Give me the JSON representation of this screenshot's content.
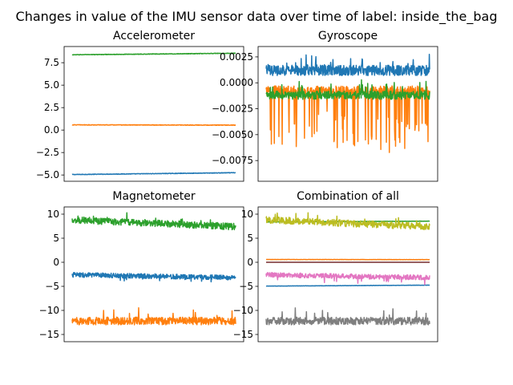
{
  "figure": {
    "suptitle": "Changes in value of the IMU sensor data over time of label: inside_the_bag"
  },
  "colors": {
    "c0": "#1f77b4",
    "c1": "#ff7f0e",
    "c2": "#2ca02c",
    "c3": "#d62728",
    "c4": "#9467bd",
    "c5": "#8c564b",
    "c6": "#e377c2",
    "c7": "#7f7f7f",
    "c8": "#bcbd22"
  },
  "chart_data": [
    {
      "type": "line",
      "title": "Accelerometer",
      "xlabel": "",
      "ylabel": "",
      "x_ticks_visible": false,
      "ylim": [
        -5.7,
        9.3
      ],
      "yticks": [
        -5.0,
        -2.5,
        0.0,
        2.5,
        5.0,
        7.5
      ],
      "ytick_labels": [
        "−5.0",
        "−2.5",
        "0.0",
        "2.5",
        "5.0",
        "7.5"
      ],
      "series": [
        {
          "color": "#1f77b4",
          "start": -4.95,
          "end": -4.75,
          "noise": 0.03,
          "spike_prob": 0,
          "spike": 0
        },
        {
          "color": "#ff7f0e",
          "start": 0.58,
          "end": 0.55,
          "noise": 0.03,
          "spike_prob": 0,
          "spike": 0
        },
        {
          "color": "#2ca02c",
          "start": 8.38,
          "end": 8.55,
          "noise": 0.03,
          "spike_prob": 0,
          "spike": 0
        }
      ]
    },
    {
      "type": "line",
      "title": "Gyroscope",
      "xlabel": "",
      "ylabel": "",
      "x_ticks_visible": false,
      "ylim": [
        -0.0095,
        0.0035
      ],
      "yticks": [
        -0.0075,
        -0.005,
        -0.0025,
        0.0,
        0.0025
      ],
      "ytick_labels": [
        "−0.0075",
        "−0.0050",
        "−0.0025",
        "0.0000",
        "0.0025"
      ],
      "series": [
        {
          "color": "#1f77b4",
          "start": 0.0012,
          "end": 0.0012,
          "noise": 0.0005,
          "spike_prob": 0.05,
          "spike": 0.0012
        },
        {
          "color": "#ff7f0e",
          "start": -0.0008,
          "end": -0.0008,
          "noise": 0.0005,
          "spike_prob": 0.12,
          "spike": -0.0055
        },
        {
          "color": "#2ca02c",
          "start": -0.0012,
          "end": -0.0012,
          "noise": 0.0004,
          "spike_prob": 0.04,
          "spike": 0.0012
        }
      ]
    },
    {
      "type": "line",
      "title": "Magnetometer",
      "xlabel": "",
      "ylabel": "",
      "x_ticks_visible": false,
      "ylim": [
        -16.5,
        11.5
      ],
      "yticks": [
        -15,
        -10,
        -5,
        0,
        5,
        10
      ],
      "ytick_labels": [
        "−15",
        "−10",
        "−5",
        "0",
        "5",
        "10"
      ],
      "series": [
        {
          "color": "#1f77b4",
          "start": -2.6,
          "end": -3.2,
          "noise": 0.5,
          "spike_prob": 0.02,
          "spike": -1.2
        },
        {
          "color": "#ff7f0e",
          "start": -12.2,
          "end": -12.2,
          "noise": 0.8,
          "spike_prob": 0.03,
          "spike": 2.5
        },
        {
          "color": "#2ca02c",
          "start": 8.8,
          "end": 7.4,
          "noise": 0.7,
          "spike_prob": 0.02,
          "spike": 1.5
        }
      ]
    },
    {
      "type": "line",
      "title": "Combination of all",
      "xlabel": "",
      "ylabel": "",
      "x_ticks_visible": false,
      "ylim": [
        -16.5,
        11.5
      ],
      "yticks": [
        -15,
        -10,
        -5,
        0,
        5,
        10
      ],
      "ytick_labels": [
        "−15",
        "−10",
        "−5",
        "0",
        "5",
        "10"
      ],
      "series": [
        {
          "color": "#1f77b4",
          "start": -4.95,
          "end": -4.75,
          "noise": 0.03,
          "spike_prob": 0,
          "spike": 0
        },
        {
          "color": "#ff7f0e",
          "start": 0.58,
          "end": 0.55,
          "noise": 0.03,
          "spike_prob": 0,
          "spike": 0
        },
        {
          "color": "#2ca02c",
          "start": 8.38,
          "end": 8.55,
          "noise": 0.03,
          "spike_prob": 0,
          "spike": 0
        },
        {
          "color": "#d62728",
          "start": 0.0012,
          "end": 0.0012,
          "noise": 0.0005,
          "spike_prob": 0,
          "spike": 0
        },
        {
          "color": "#9467bd",
          "start": -0.0008,
          "end": -0.0008,
          "noise": 0.0005,
          "spike_prob": 0,
          "spike": 0
        },
        {
          "color": "#8c564b",
          "start": -0.0012,
          "end": -0.0012,
          "noise": 0.0004,
          "spike_prob": 0,
          "spike": 0
        },
        {
          "color": "#e377c2",
          "start": -2.6,
          "end": -3.2,
          "noise": 0.5,
          "spike_prob": 0.02,
          "spike": -1.2
        },
        {
          "color": "#7f7f7f",
          "start": -12.2,
          "end": -12.2,
          "noise": 0.8,
          "spike_prob": 0.03,
          "spike": 2.5
        },
        {
          "color": "#bcbd22",
          "start": 8.8,
          "end": 7.4,
          "noise": 0.7,
          "spike_prob": 0.02,
          "spike": 1.5
        }
      ]
    }
  ]
}
